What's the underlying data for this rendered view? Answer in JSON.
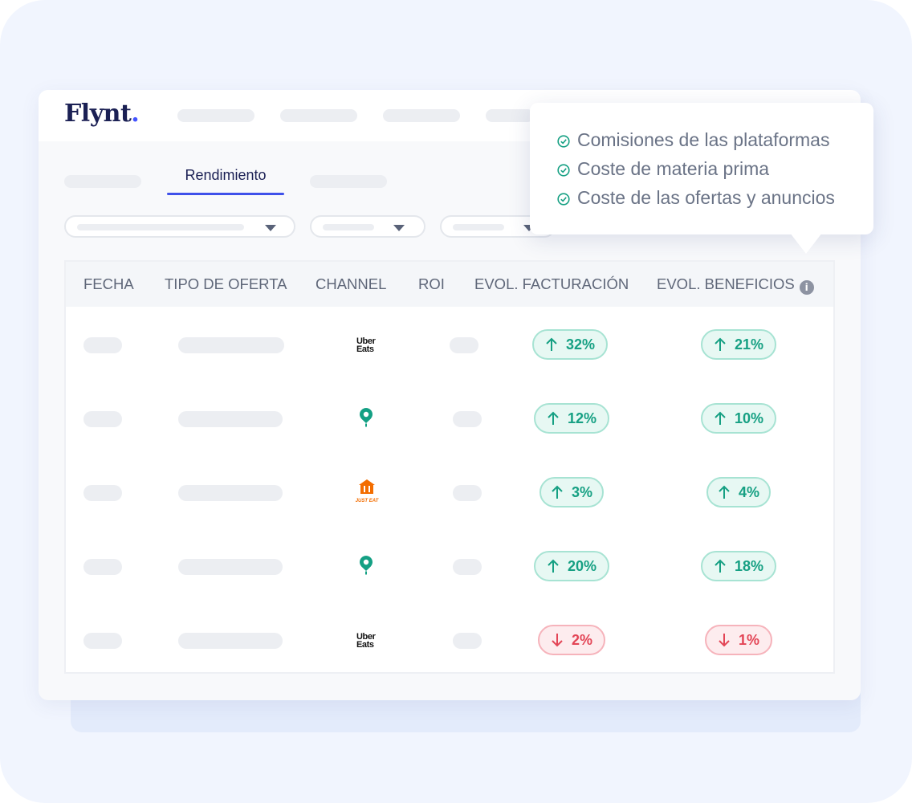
{
  "brand": {
    "name": "Flynt",
    "dot": ".",
    "color": "#1b2054",
    "accent": "#4353ff"
  },
  "tabs": {
    "active_label": "Rendimiento"
  },
  "tooltip": {
    "items": [
      "Comisiones de las plataformas",
      "Coste de materia prima",
      "Coste de las ofertas y anuncios"
    ]
  },
  "table": {
    "headers": {
      "fecha": "FECHA",
      "tipo": "TIPO DE OFERTA",
      "channel": "CHANNEL",
      "roi": "ROI",
      "facturacion": "EVOL. FACTURACIÓN",
      "beneficios": "EVOL. BENEFICIOS"
    },
    "rows": [
      {
        "channel": "uber-eats",
        "channel_text_1": "Uber",
        "channel_text_2": "Eats",
        "facturacion": "32%",
        "facturacion_trend": "up",
        "beneficios": "21%",
        "beneficios_trend": "up"
      },
      {
        "channel": "glovo",
        "facturacion": "12%",
        "facturacion_trend": "up",
        "beneficios": "10%",
        "beneficios_trend": "up"
      },
      {
        "channel": "just-eat",
        "channel_text": "JUST EAT",
        "facturacion": "3%",
        "facturacion_trend": "up",
        "beneficios": "4%",
        "beneficios_trend": "up"
      },
      {
        "channel": "glovo",
        "facturacion": "20%",
        "facturacion_trend": "up",
        "beneficios": "18%",
        "beneficios_trend": "up"
      },
      {
        "channel": "uber-eats",
        "channel_text_1": "Uber",
        "channel_text_2": "Eats",
        "facturacion": "2%",
        "facturacion_trend": "down",
        "beneficios": "1%",
        "beneficios_trend": "down"
      }
    ]
  },
  "colors": {
    "up_text": "#16a083",
    "down_text": "#e34556",
    "glovo": "#14a084",
    "just_eat": "#f36d00",
    "tab_active": "#3f51ea"
  }
}
